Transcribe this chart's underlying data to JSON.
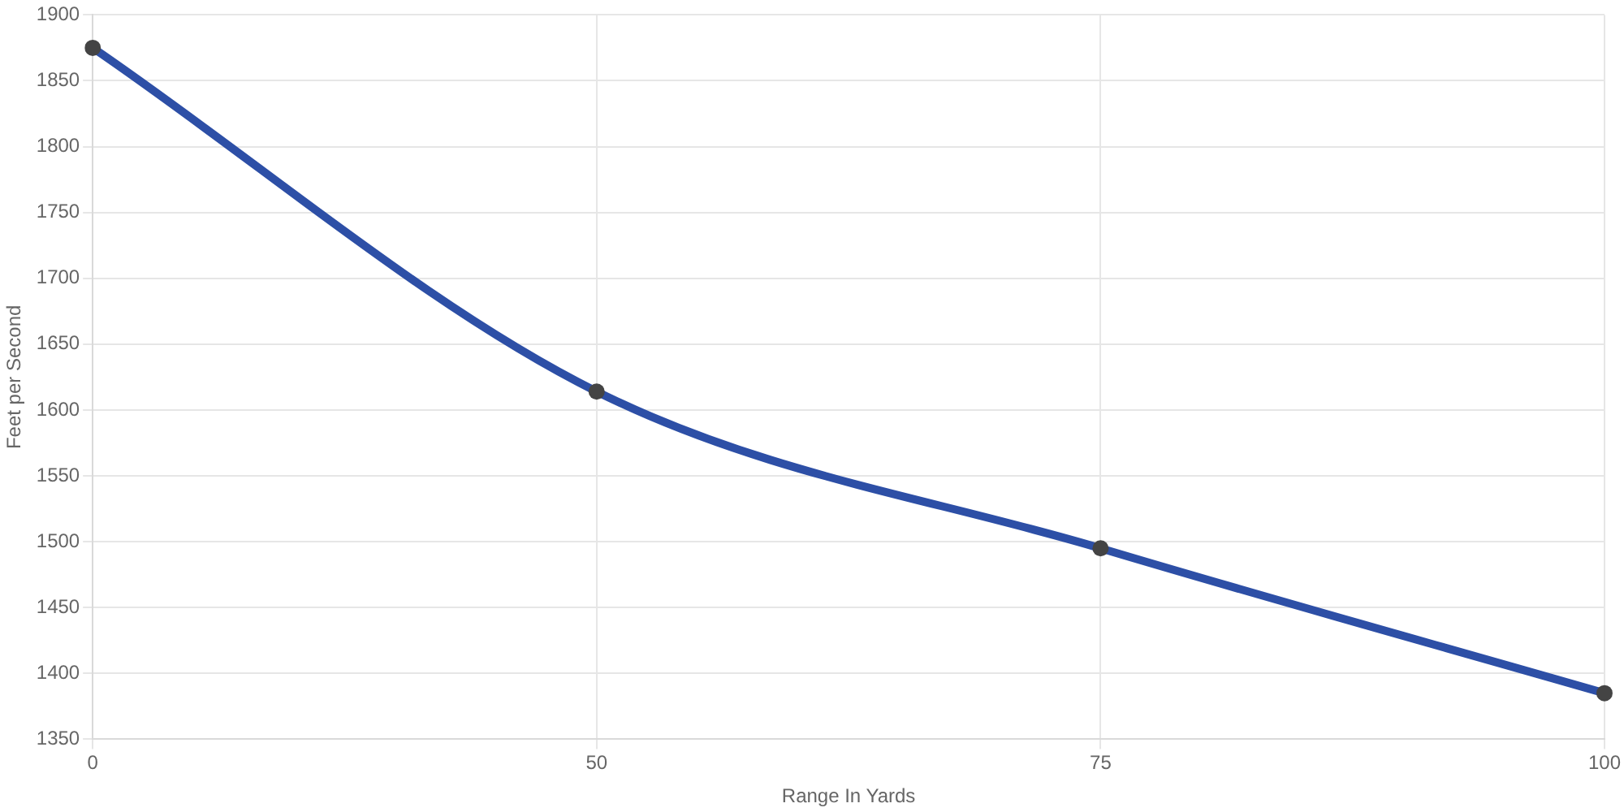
{
  "chart_data": {
    "type": "line",
    "xlabel": "Range In Yards",
    "ylabel": "Feet per Second",
    "categories": [
      "0",
      "50",
      "75",
      "100"
    ],
    "series": [
      {
        "color": "#2d4fa6",
        "values": [
          1875,
          1614,
          1495,
          1385
        ]
      }
    ],
    "ylim": [
      1350,
      1900
    ],
    "yticks": [
      1350,
      1400,
      1450,
      1500,
      1550,
      1600,
      1650,
      1700,
      1750,
      1800,
      1850,
      1900
    ],
    "grid": true,
    "legend": false,
    "marker": "circle",
    "line_style": "solid"
  }
}
